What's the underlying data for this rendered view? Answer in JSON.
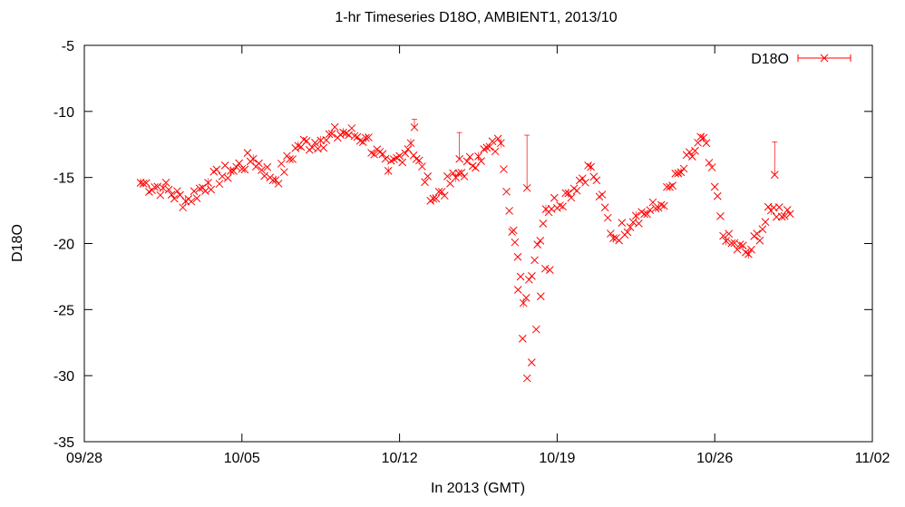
{
  "chart_data": {
    "type": "scatter",
    "title": "1-hr Timeseries D18O, AMBIENT1, 2013/10",
    "xlabel": "In 2013 (GMT)",
    "ylabel": "D18O",
    "x_axis_type": "date",
    "xlim": [
      "2013-09-28",
      "2013-11-02"
    ],
    "ylim": [
      -35,
      -5
    ],
    "x_ticks": [
      "09/28",
      "10/05",
      "10/12",
      "10/19",
      "10/26",
      "11/02"
    ],
    "y_ticks": [
      "-5",
      "-10",
      "-15",
      "-20",
      "-25",
      "-30",
      "-35"
    ],
    "grid": false,
    "legend_position": "top-right",
    "color": "#ff0000",
    "marker": "x with error bars",
    "series": [
      {
        "name": "D18O",
        "points": [
          [
            "2013-09-30",
            -15.4
          ],
          [
            "2013-10-01",
            -15.8
          ],
          [
            "2013-10-02",
            -16.8
          ],
          [
            "2013-10-03",
            -15.4
          ],
          [
            "2013-10-04",
            -14.5
          ],
          [
            "2013-10-05",
            -13.6
          ],
          [
            "2013-10-06",
            -15.2
          ],
          [
            "2013-10-07",
            -12.6
          ],
          [
            "2013-10-08",
            -12.2
          ],
          [
            "2013-10-09",
            -11.6
          ],
          [
            "2013-10-10",
            -12.0
          ],
          [
            "2013-10-11",
            -14.5
          ],
          [
            "2013-10-12",
            -12.4
          ],
          [
            "2013-10-13",
            -16.6
          ],
          [
            "2013-10-14",
            -15.0
          ],
          [
            "2013-10-15",
            -13.4
          ],
          [
            "2013-10-16",
            -12.4
          ],
          [
            "2013-10-17",
            -24.5
          ],
          [
            "2013-10-18",
            -17.4
          ],
          [
            "2013-10-19",
            -16.2
          ],
          [
            "2013-10-20",
            -14.2
          ],
          [
            "2013-10-21",
            -19.6
          ],
          [
            "2013-10-22",
            -17.9
          ],
          [
            "2013-10-23",
            -17.3
          ],
          [
            "2013-10-24",
            -14.6
          ],
          [
            "2013-10-25",
            -12.0
          ],
          [
            "2013-10-26",
            -19.8
          ],
          [
            "2013-10-27",
            -20.8
          ],
          [
            "2013-10-28",
            -17.5
          ]
        ]
      }
    ],
    "annotations": {
      "error_bar_outliers": [
        [
          "2013-10-17",
          -15.8,
          -11.8
        ],
        [
          "2013-10-28",
          -14.8,
          -12.3
        ],
        [
          "2013-10-14",
          -13.6,
          -11.6
        ],
        [
          "2013-10-12",
          -11.2,
          -10.6
        ]
      ]
    }
  }
}
